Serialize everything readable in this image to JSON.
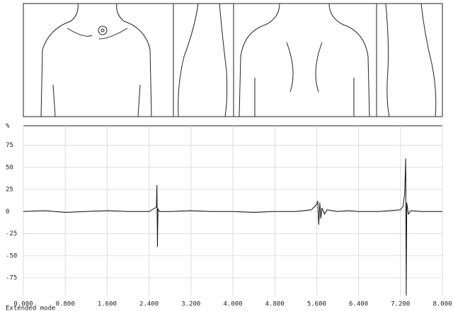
{
  "chart_data": {
    "type": "line",
    "y_label": "%",
    "annotation": "Extended mode",
    "x": [
      0,
      0.4,
      0.8,
      1.2,
      1.6,
      2.0,
      2.4,
      2.54,
      2.55,
      2.56,
      2.57,
      2.6,
      2.8,
      3.2,
      3.6,
      4.0,
      4.4,
      4.8,
      5.2,
      5.5,
      5.6,
      5.62,
      5.64,
      5.66,
      5.68,
      5.7,
      5.75,
      5.8,
      5.9,
      6.0,
      6.2,
      6.4,
      6.8,
      7.2,
      7.25,
      7.28,
      7.3,
      7.31,
      7.32,
      7.35,
      7.4,
      7.6,
      8.0
    ],
    "series": [
      {
        "color": "#111111",
        "values": [
          0,
          1,
          -1,
          0,
          1,
          0,
          0,
          5,
          30,
          -40,
          3,
          0,
          0,
          1,
          0,
          0,
          -1,
          0,
          0,
          2,
          8,
          12,
          -15,
          10,
          -8,
          4,
          -3,
          2,
          1,
          0,
          1,
          0,
          0,
          2,
          6,
          20,
          60,
          -95,
          10,
          -3,
          1,
          0,
          0
        ]
      }
    ],
    "xlim": [
      0,
      8
    ],
    "ylim": [
      -95,
      97
    ],
    "xticks": [
      {
        "value": 0,
        "label": "0.000"
      },
      {
        "value": 0.8,
        "label": "0.800"
      },
      {
        "value": 1.6,
        "label": "1.600"
      },
      {
        "value": 2.4,
        "label": "2.400"
      },
      {
        "value": 3.2,
        "label": "3.200"
      },
      {
        "value": 4.0,
        "label": "4.000"
      },
      {
        "value": 4.8,
        "label": "4.800"
      },
      {
        "value": 5.6,
        "label": "5.600"
      },
      {
        "value": 6.4,
        "label": "6.400"
      },
      {
        "value": 7.2,
        "label": "7.200"
      },
      {
        "value": 8.0,
        "label": "8.000"
      }
    ],
    "yticks": [
      -75,
      -50,
      -25,
      0,
      25,
      50,
      75
    ],
    "grid": true
  }
}
